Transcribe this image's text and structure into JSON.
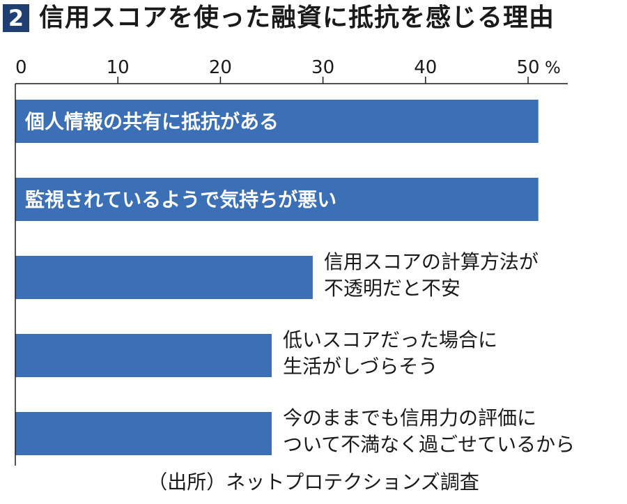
{
  "header": {
    "badge": "2",
    "title": "信用スコアを使った融資に抵抗を感じる理由"
  },
  "chart_data": {
    "type": "bar",
    "orientation": "horizontal",
    "categories": [
      [
        "個人情報の共有に抵抗がある"
      ],
      [
        "監視されているようで気持ちが悪い"
      ],
      [
        "信用スコアの計算方法が",
        "不透明だと不安"
      ],
      [
        "低いスコアだった場合に",
        "生活がしづらそう"
      ],
      [
        "今のままでも信用力の評価に",
        "ついて不満なく過ごせているから"
      ]
    ],
    "values": [
      51,
      51,
      29,
      25,
      25
    ],
    "label_inside": [
      true,
      true,
      false,
      false,
      false
    ],
    "xlim": [
      0,
      50
    ],
    "xticks": [
      "0",
      "10",
      "20",
      "30",
      "40",
      "50"
    ],
    "unit": "%",
    "bar_color": "#3b6fb6"
  },
  "source": "（出所）ネットプロテクションズ調査"
}
